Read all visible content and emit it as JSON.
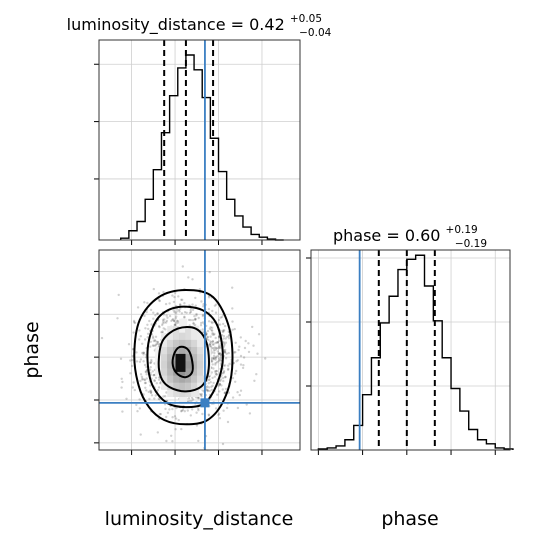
{
  "chart_data": [
    {
      "type": "histogram",
      "parameter": "luminosity_distance",
      "title": {
        "prefix": "luminosity_distance = 0.42",
        "upper": "+0.05",
        "lower": "−0.04"
      },
      "xlim": [
        0.26,
        0.63
      ],
      "bins": [
        0.3,
        0.315,
        0.33,
        0.345,
        0.36,
        0.375,
        0.39,
        0.405,
        0.42,
        0.435,
        0.45,
        0.465,
        0.48,
        0.495,
        0.51,
        0.525,
        0.54,
        0.555,
        0.57,
        0.585,
        0.6
      ],
      "counts": [
        0.01,
        0.05,
        0.1,
        0.22,
        0.38,
        0.58,
        0.78,
        0.93,
        1.0,
        0.92,
        0.77,
        0.55,
        0.37,
        0.22,
        0.13,
        0.07,
        0.03,
        0.015,
        0.005,
        0.0
      ],
      "quantiles": [
        0.38,
        0.42,
        0.47
      ],
      "truth": 0.455
    },
    {
      "type": "histogram",
      "parameter": "phase",
      "title": {
        "prefix": "phase = 0.60",
        "upper": "+0.19",
        "lower": "−0.19"
      },
      "xlim": [
        -0.05,
        1.3
      ],
      "xticks": [
        "0.0",
        "0.3",
        "0.6",
        "0.9",
        "1.2"
      ],
      "xlabel": "phase",
      "bins": [
        0.0,
        0.06,
        0.12,
        0.18,
        0.24,
        0.3,
        0.36,
        0.42,
        0.48,
        0.54,
        0.6,
        0.66,
        0.72,
        0.78,
        0.84,
        0.9,
        0.96,
        1.02,
        1.08,
        1.14,
        1.2,
        1.26,
        1.32
      ],
      "counts": [
        0.005,
        0.01,
        0.02,
        0.05,
        0.12,
        0.27,
        0.45,
        0.62,
        0.75,
        0.88,
        0.93,
        0.95,
        0.8,
        0.63,
        0.45,
        0.3,
        0.19,
        0.1,
        0.05,
        0.03,
        0.01,
        0.005
      ],
      "quantiles": [
        0.41,
        0.6,
        0.79
      ],
      "truth": 0.28
    },
    {
      "type": "scatter",
      "title": "",
      "x_param": "luminosity_distance",
      "y_param": "phase",
      "xlabel": "luminosity_distance",
      "ylabel": "phase",
      "xlim": [
        0.26,
        0.63
      ],
      "ylim": [
        -0.05,
        1.35
      ],
      "xticks": [
        "0.32",
        "0.40",
        "0.48",
        "0.56"
      ],
      "yticks": [
        "0.0",
        "0.3",
        "0.6",
        "0.9",
        "1.2"
      ],
      "grid": true,
      "truth": [
        0.455,
        0.28
      ],
      "contours": [
        {
          "level": "39%",
          "points": [
            [
              0.405,
              0.48
            ],
            [
              0.42,
              0.46
            ],
            [
              0.432,
              0.5
            ],
            [
              0.43,
              0.6
            ],
            [
              0.422,
              0.66
            ],
            [
              0.408,
              0.67
            ],
            [
              0.398,
              0.62
            ],
            [
              0.396,
              0.54
            ]
          ]
        },
        {
          "level": "86%",
          "points": [
            [
              0.39,
              0.39
            ],
            [
              0.42,
              0.36
            ],
            [
              0.45,
              0.4
            ],
            [
              0.462,
              0.52
            ],
            [
              0.458,
              0.7
            ],
            [
              0.438,
              0.8
            ],
            [
              0.405,
              0.8
            ],
            [
              0.378,
              0.72
            ],
            [
              0.37,
              0.58
            ],
            [
              0.374,
              0.46
            ]
          ]
        },
        {
          "level": "99%",
          "points": [
            [
              0.385,
              0.28
            ],
            [
              0.42,
              0.25
            ],
            [
              0.455,
              0.28
            ],
            [
              0.478,
              0.42
            ],
            [
              0.488,
              0.6
            ],
            [
              0.478,
              0.82
            ],
            [
              0.45,
              0.93
            ],
            [
              0.405,
              0.95
            ],
            [
              0.37,
              0.88
            ],
            [
              0.352,
              0.72
            ],
            [
              0.35,
              0.54
            ],
            [
              0.36,
              0.39
            ]
          ]
        },
        {
          "level": "outer",
          "points": [
            [
              0.38,
              0.16
            ],
            [
              0.42,
              0.13
            ],
            [
              0.46,
              0.16
            ],
            [
              0.49,
              0.3
            ],
            [
              0.505,
              0.52
            ],
            [
              0.5,
              0.8
            ],
            [
              0.47,
              1.02
            ],
            [
              0.42,
              1.07
            ],
            [
              0.37,
              1.02
            ],
            [
              0.335,
              0.86
            ],
            [
              0.325,
              0.62
            ],
            [
              0.333,
              0.4
            ],
            [
              0.352,
              0.25
            ]
          ]
        }
      ]
    }
  ]
}
